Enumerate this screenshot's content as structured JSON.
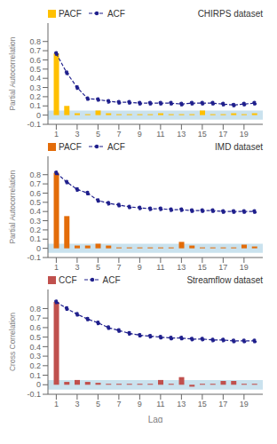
{
  "chart_data": [
    {
      "type": "bar",
      "title": "CHIRPS dataset",
      "ylabel": "Partial Autocorrelation",
      "x": [
        1,
        2,
        3,
        4,
        5,
        6,
        7,
        8,
        9,
        10,
        11,
        12,
        13,
        14,
        15,
        16,
        17,
        18,
        19,
        20
      ],
      "series": [
        {
          "name": "PACF",
          "type": "bar",
          "color": "#FFC000",
          "values": [
            0.67,
            0.1,
            0.02,
            0.01,
            0.05,
            0.02,
            0.01,
            0.01,
            0.01,
            0.01,
            0.02,
            0.01,
            0.01,
            0.01,
            0.05,
            0.01,
            0.01,
            0.02,
            0.01,
            0.02
          ]
        },
        {
          "name": "ACF",
          "type": "line",
          "color": "#1F1F8C",
          "marker": "o",
          "line_style": "dashed",
          "values": [
            0.67,
            0.46,
            0.3,
            0.18,
            0.17,
            0.15,
            0.14,
            0.14,
            0.13,
            0.13,
            0.13,
            0.13,
            0.12,
            0.13,
            0.13,
            0.13,
            0.12,
            0.11,
            0.12,
            0.13
          ]
        }
      ],
      "bands": [
        {
          "range": [
            -0.05,
            0.05
          ],
          "color": "#B8D8E8"
        }
      ],
      "xlim": [
        0.2,
        20.8
      ],
      "xticks": [
        1,
        3,
        5,
        7,
        9,
        11,
        13,
        15,
        17,
        19
      ],
      "ylim": [
        -0.1,
        1.0
      ],
      "yticks": [
        0.8,
        0.7,
        0.6,
        0.5,
        0.4,
        0.3,
        0.2,
        0.1,
        0,
        -0.1
      ],
      "legend": "upper left",
      "grid": false
    },
    {
      "type": "bar",
      "title": "IMD dataset",
      "ylabel": "Partial Autocorrelation",
      "x": [
        1,
        2,
        3,
        4,
        5,
        6,
        7,
        8,
        9,
        10,
        11,
        12,
        13,
        14,
        15,
        16,
        17,
        18,
        19,
        20
      ],
      "series": [
        {
          "name": "PACF",
          "type": "bar",
          "color": "#E36C09",
          "values": [
            0.82,
            0.35,
            0.03,
            0.03,
            0.05,
            0.03,
            0.01,
            0.01,
            0.01,
            0.01,
            0.01,
            0.01,
            0.07,
            0.03,
            0.01,
            0.01,
            0.01,
            0.01,
            0.04,
            0.02
          ]
        },
        {
          "name": "ACF",
          "type": "line",
          "color": "#1F1F8C",
          "marker": "o",
          "line_style": "dashed",
          "values": [
            0.82,
            0.72,
            0.64,
            0.6,
            0.52,
            0.49,
            0.47,
            0.45,
            0.44,
            0.43,
            0.43,
            0.42,
            0.42,
            0.41,
            0.41,
            0.41,
            0.4,
            0.4,
            0.4,
            0.4
          ]
        }
      ],
      "bands": [
        {
          "range": [
            -0.05,
            0.05
          ],
          "color": "#B8D8E8"
        }
      ],
      "xlim": [
        0.2,
        20.8
      ],
      "xticks": [
        1,
        3,
        5,
        7,
        9,
        11,
        13,
        15,
        17,
        19
      ],
      "ylim": [
        -0.1,
        1.0
      ],
      "yticks": [
        0.8,
        0.7,
        0.6,
        0.5,
        0.4,
        0.3,
        0.2,
        0.1,
        0,
        -0.1
      ],
      "legend": "upper left",
      "grid": false
    },
    {
      "type": "bar",
      "title": "Streamflow dataset",
      "ylabel": "Cross Correlation",
      "xlabel": "Lag",
      "x": [
        1,
        2,
        3,
        4,
        5,
        6,
        7,
        8,
        9,
        10,
        11,
        12,
        13,
        14,
        15,
        16,
        17,
        18,
        19,
        20
      ],
      "series": [
        {
          "name": "CCF",
          "type": "bar",
          "color": "#C0504D",
          "values": [
            0.87,
            0.03,
            0.05,
            0.03,
            0.02,
            0.01,
            0.01,
            0.01,
            0.01,
            0.01,
            0.05,
            0.01,
            0.08,
            -0.02,
            0.01,
            0.01,
            0.04,
            0.04,
            0.01,
            0.01
          ]
        },
        {
          "name": "ACF",
          "type": "line",
          "color": "#1F1F8C",
          "marker": "o",
          "line_style": "dashed",
          "values": [
            0.87,
            0.8,
            0.74,
            0.69,
            0.65,
            0.6,
            0.57,
            0.54,
            0.52,
            0.51,
            0.5,
            0.49,
            0.49,
            0.48,
            0.48,
            0.47,
            0.47,
            0.46,
            0.46,
            0.46
          ]
        }
      ],
      "bands": [
        {
          "range": [
            -0.05,
            0.05
          ],
          "color": "#B8D8E8"
        }
      ],
      "xlim": [
        0.2,
        20.8
      ],
      "xticks": [
        1,
        3,
        5,
        7,
        9,
        11,
        13,
        15,
        17,
        19
      ],
      "ylim": [
        -0.1,
        1.0
      ],
      "yticks": [
        0.8,
        0.7,
        0.6,
        0.5,
        0.4,
        0.3,
        0.2,
        0.1,
        0,
        -0.1
      ],
      "legend": "upper left",
      "grid": false
    }
  ]
}
